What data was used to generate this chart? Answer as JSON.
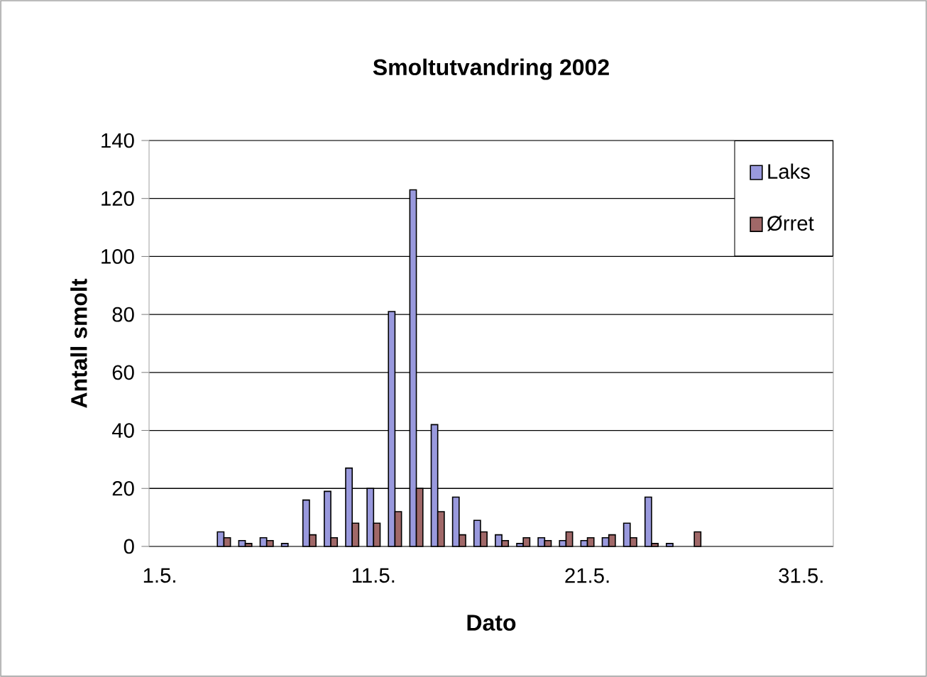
{
  "chart_data": {
    "type": "bar",
    "title": "Smoltutvandring 2002",
    "xlabel": "Dato",
    "ylabel": "Antall smolt",
    "categories": [
      "1.5.",
      null,
      null,
      null,
      null,
      null,
      null,
      null,
      null,
      null,
      "11.5.",
      null,
      null,
      null,
      null,
      null,
      null,
      null,
      null,
      null,
      "21.5.",
      null,
      null,
      null,
      null,
      null,
      null,
      null,
      null,
      null,
      "31.5.",
      null
    ],
    "series": [
      {
        "name": "Laks",
        "color": "#9999dd",
        "values": [
          null,
          null,
          null,
          5,
          2,
          3,
          1,
          16,
          19,
          27,
          20,
          81,
          123,
          42,
          17,
          9,
          4,
          1,
          3,
          2,
          2,
          3,
          8,
          17,
          1,
          null,
          null,
          null,
          null,
          null,
          null,
          null
        ]
      },
      {
        "name": "Ørret",
        "color": "#a06868",
        "values": [
          null,
          null,
          null,
          3,
          1,
          2,
          null,
          4,
          3,
          8,
          8,
          12,
          20,
          12,
          4,
          5,
          2,
          3,
          2,
          5,
          3,
          4,
          3,
          1,
          null,
          5,
          null,
          null,
          null,
          null,
          null,
          null
        ]
      }
    ],
    "ylim": [
      0,
      140
    ],
    "yticks": [
      0,
      20,
      40,
      60,
      80,
      100,
      120,
      140
    ],
    "grid": "y",
    "legend": "top right"
  }
}
